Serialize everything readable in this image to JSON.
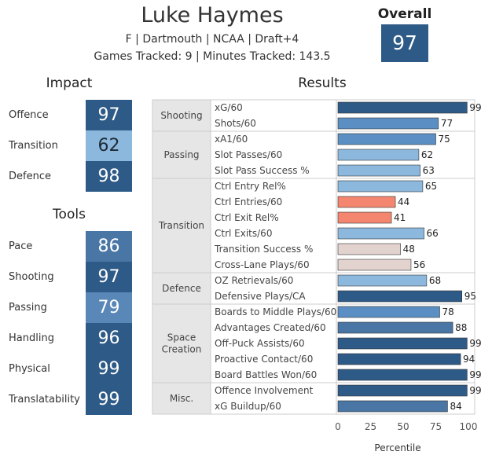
{
  "header": {
    "name": "Luke Haymes",
    "info": "F | Dartmouth | NCAA | Draft+4",
    "tracked": "Games Tracked: 9 | Minutes Tracked: 143.5",
    "overall_label": "Overall",
    "overall_value": "97"
  },
  "impact": {
    "title": "Impact",
    "items": [
      {
        "label": "Offence",
        "value": "97",
        "color": "#2e5a87"
      },
      {
        "label": "Transition",
        "value": "62",
        "color": "#8bb8dc"
      },
      {
        "label": "Defence",
        "value": "98",
        "color": "#2e5a87"
      }
    ]
  },
  "tools": {
    "title": "Tools",
    "items": [
      {
        "label": "Pace",
        "value": "86",
        "color": "#4a76a6"
      },
      {
        "label": "Shooting",
        "value": "97",
        "color": "#2e5a87"
      },
      {
        "label": "Passing",
        "value": "79",
        "color": "#5887b8"
      },
      {
        "label": "Handling",
        "value": "96",
        "color": "#2e5a87"
      },
      {
        "label": "Physical",
        "value": "99",
        "color": "#2e5a87"
      },
      {
        "label": "Translatability",
        "value": "99",
        "color": "#2e5a87"
      }
    ]
  },
  "results_title": "Results",
  "chart_data": {
    "type": "bar",
    "orientation": "horizontal",
    "xlabel": "Percentile",
    "xlim": [
      0,
      100
    ],
    "xticks": [
      0,
      25,
      50,
      75,
      100
    ],
    "groups": [
      {
        "name": "Shooting",
        "metrics": [
          {
            "label": "xG/60",
            "value": 99,
            "color": "#2e5a87"
          },
          {
            "label": "Shots/60",
            "value": 77,
            "color": "#5b8fc3"
          }
        ]
      },
      {
        "name": "Passing",
        "metrics": [
          {
            "label": "xA1/60",
            "value": 75,
            "color": "#5b8fc3"
          },
          {
            "label": "Slot Passes/60",
            "value": 62,
            "color": "#8bb8dc"
          },
          {
            "label": "Slot Pass Success %",
            "value": 63,
            "color": "#8bb8dc"
          }
        ]
      },
      {
        "name": "Transition",
        "metrics": [
          {
            "label": "Ctrl Entry Rel%",
            "value": 65,
            "color": "#8bb8dc"
          },
          {
            "label": "Ctrl Entries/60",
            "value": 44,
            "color": "#f4866f"
          },
          {
            "label": "Ctrl Exit Rel%",
            "value": 41,
            "color": "#f4866f"
          },
          {
            "label": "Ctrl Exits/60",
            "value": 66,
            "color": "#8bb8dc"
          },
          {
            "label": "Transition Success %",
            "value": 48,
            "color": "#e2d3cf"
          },
          {
            "label": "Cross-Lane Plays/60",
            "value": 56,
            "color": "#e2d3cf"
          }
        ]
      },
      {
        "name": "Defence",
        "metrics": [
          {
            "label": "OZ Retrievals/60",
            "value": 68,
            "color": "#8bb8dc"
          },
          {
            "label": "Defensive Plays/CA",
            "value": 95,
            "color": "#2e5a87"
          }
        ]
      },
      {
        "name": "Space Creation",
        "metrics": [
          {
            "label": "Boards to Middle Plays/60",
            "value": 78,
            "color": "#5b8fc3"
          },
          {
            "label": "Advantages Created/60",
            "value": 88,
            "color": "#4a76a6"
          },
          {
            "label": "Off-Puck Assists/60",
            "value": 99,
            "color": "#2e5a87"
          },
          {
            "label": "Proactive Contact/60",
            "value": 94,
            "color": "#2e5a87"
          },
          {
            "label": "Board Battles Won/60",
            "value": 99,
            "color": "#2e5a87"
          }
        ]
      },
      {
        "name": "Misc.",
        "metrics": [
          {
            "label": "Offence Involvement",
            "value": 99,
            "color": "#2e5a87"
          },
          {
            "label": "xG Buildup/60",
            "value": 84,
            "color": "#4a76a6"
          }
        ]
      }
    ]
  }
}
